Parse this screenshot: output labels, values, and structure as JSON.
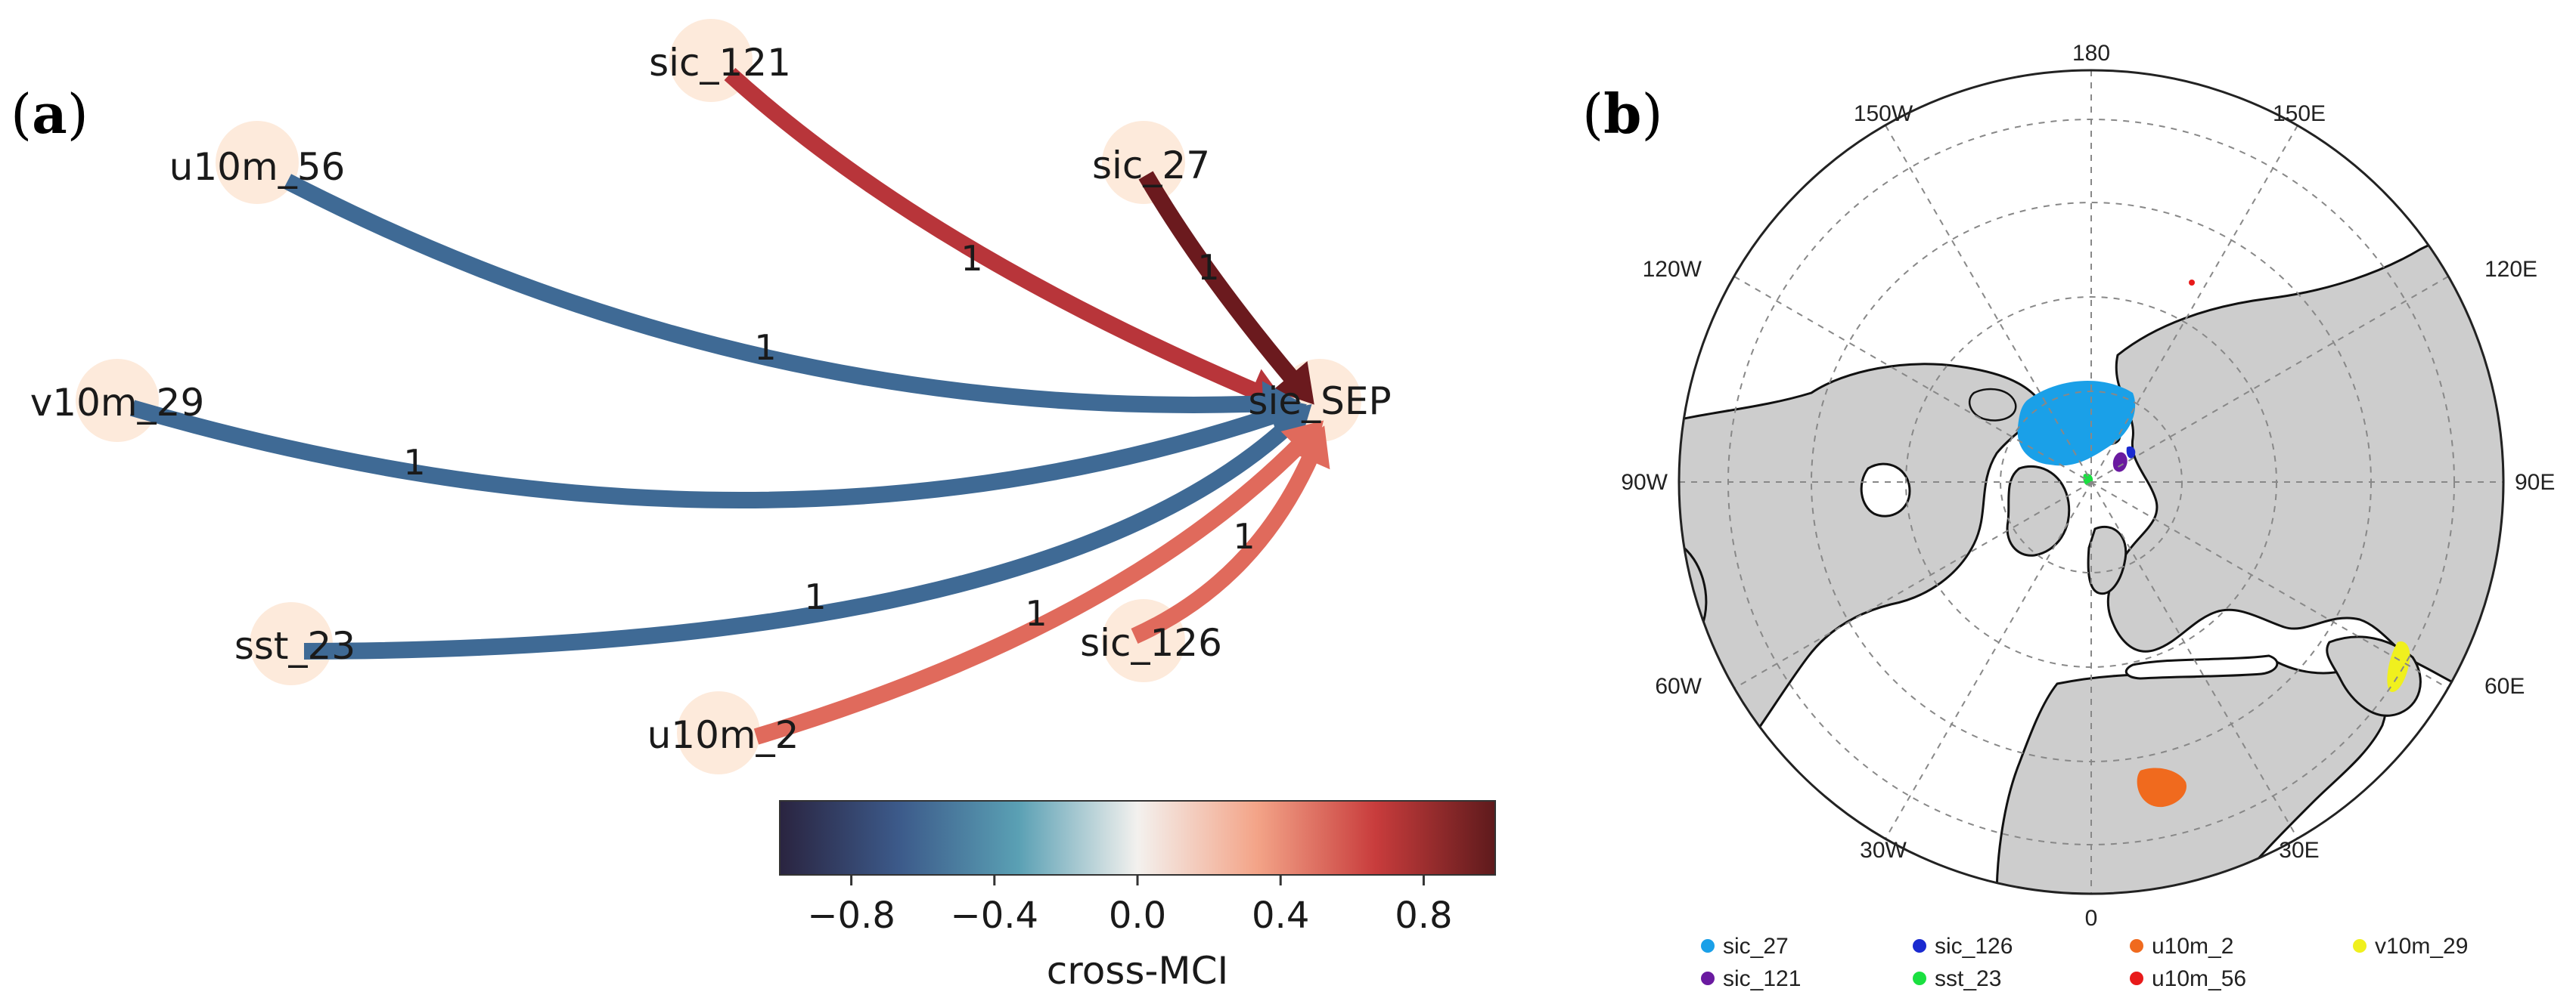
{
  "panel_a": {
    "tag_open": "(",
    "tag_letter": "a",
    "tag_close": ")",
    "target": "sie_SEP",
    "nodes": [
      {
        "id": "sic_121",
        "label": "sic_121"
      },
      {
        "id": "u10m_56",
        "label": "u10m_56"
      },
      {
        "id": "sic_27",
        "label": "sic_27"
      },
      {
        "id": "v10m_29",
        "label": "v10m_29"
      },
      {
        "id": "sst_23",
        "label": "sst_23"
      },
      {
        "id": "sic_126",
        "label": "sic_126"
      },
      {
        "id": "u10m_2",
        "label": "u10m_2"
      },
      {
        "id": "sie_SEP",
        "label": "sie_SEP"
      }
    ],
    "edges": [
      {
        "source": "sic_121",
        "target": "sie_SEP",
        "lag_label": "1",
        "color": "#b8353a"
      },
      {
        "source": "sic_27",
        "target": "sie_SEP",
        "lag_label": "1",
        "color": "#6b1a1e"
      },
      {
        "source": "u10m_56",
        "target": "sie_SEP",
        "lag_label": "1",
        "color": "#3f6a95"
      },
      {
        "source": "v10m_29",
        "target": "sie_SEP",
        "lag_label": "1",
        "color": "#3f6a95"
      },
      {
        "source": "sst_23",
        "target": "sie_SEP",
        "lag_label": "1",
        "color": "#3f6a95"
      },
      {
        "source": "u10m_2",
        "target": "sie_SEP",
        "lag_label": "1",
        "color": "#e06a5c"
      },
      {
        "source": "sic_126",
        "target": "sie_SEP",
        "lag_label": "1",
        "color": "#e06a5c"
      }
    ],
    "colorbar": {
      "title": "cross-MCI",
      "ticks": [
        "−0.8",
        "−0.4",
        "0.0",
        "0.4",
        "0.8"
      ],
      "range": [
        -1,
        1
      ],
      "stops": [
        "#2a2440",
        "#3c5a8a",
        "#5aa0b4",
        "#f3f1ee",
        "#f3a488",
        "#c83c3c",
        "#5e1a1c"
      ]
    }
  },
  "panel_b": {
    "tag_open": "(",
    "tag_letter": "b",
    "tag_close": ")",
    "longitude_labels": {
      "top": "180",
      "bottom": "0",
      "left": "90W",
      "right": "90E",
      "w150": "150W",
      "e150": "150E",
      "w120": "120W",
      "e120": "120E",
      "w60": "60W",
      "e60": "60E",
      "w30": "30W",
      "e30": "30E"
    },
    "legend": [
      {
        "label": "sic_27",
        "color": "#1aa0e8"
      },
      {
        "label": "sic_126",
        "color": "#1a2ad0"
      },
      {
        "label": "u10m_2",
        "color": "#f06a1e"
      },
      {
        "label": "v10m_29",
        "color": "#f0f01e"
      },
      {
        "label": "sic_121",
        "color": "#6a1aa0"
      },
      {
        "label": "sst_23",
        "color": "#1ae040"
      },
      {
        "label": "u10m_56",
        "color": "#e81a1a"
      }
    ]
  }
}
